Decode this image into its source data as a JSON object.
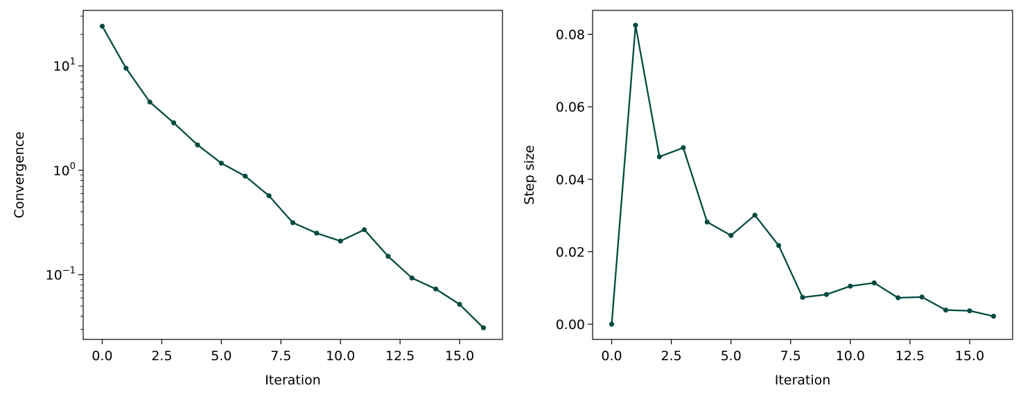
{
  "chart_data": [
    {
      "type": "line",
      "xlabel": "Iteration",
      "ylabel": "Convergence",
      "yscale": "log",
      "xlim": [
        -0.8,
        16.8
      ],
      "ylim": [
        0.024,
        34
      ],
      "xticks": [
        0.0,
        2.5,
        5.0,
        7.5,
        10.0,
        12.5,
        15.0
      ],
      "xtick_labels": [
        "0.0",
        "2.5",
        "5.0",
        "7.5",
        "10.0",
        "12.5",
        "15.0"
      ],
      "yticks": [
        0.1,
        1,
        10
      ],
      "ytick_labels": [
        {
          "base": "10",
          "exp": "−1"
        },
        {
          "base": "10",
          "exp": "0"
        },
        {
          "base": "10",
          "exp": "1"
        }
      ],
      "grid": false,
      "series": [
        {
          "color": "#024a3e",
          "marker": "circle",
          "x": [
            0,
            1,
            2,
            3,
            4,
            5,
            6,
            7,
            8,
            9,
            10,
            11,
            12,
            13,
            14,
            15,
            16
          ],
          "y": [
            24,
            9.5,
            4.5,
            2.85,
            1.75,
            1.17,
            0.88,
            0.57,
            0.315,
            0.25,
            0.21,
            0.27,
            0.15,
            0.093,
            0.073,
            0.052,
            0.031
          ]
        }
      ]
    },
    {
      "type": "line",
      "xlabel": "Iteration",
      "ylabel": "Step size",
      "yscale": "linear",
      "xlim": [
        -0.8,
        16.8
      ],
      "ylim": [
        -0.0042,
        0.0866
      ],
      "xticks": [
        0.0,
        2.5,
        5.0,
        7.5,
        10.0,
        12.5,
        15.0
      ],
      "xtick_labels": [
        "0.0",
        "2.5",
        "5.0",
        "7.5",
        "10.0",
        "12.5",
        "15.0"
      ],
      "yticks": [
        0.0,
        0.02,
        0.04,
        0.06,
        0.08
      ],
      "ytick_labels": [
        "0.00",
        "0.02",
        "0.04",
        "0.06",
        "0.08"
      ],
      "grid": false,
      "series": [
        {
          "color": "#024a3e",
          "marker": "circle",
          "x": [
            0,
            1,
            2,
            3,
            4,
            5,
            6,
            7,
            8,
            9,
            10,
            11,
            12,
            13,
            14,
            15,
            16
          ],
          "y": [
            0.0,
            0.0825,
            0.0462,
            0.0487,
            0.0282,
            0.0245,
            0.0301,
            0.0217,
            0.0074,
            0.0082,
            0.0105,
            0.0114,
            0.0073,
            0.0075,
            0.0039,
            0.0037,
            0.0022
          ]
        }
      ]
    }
  ]
}
